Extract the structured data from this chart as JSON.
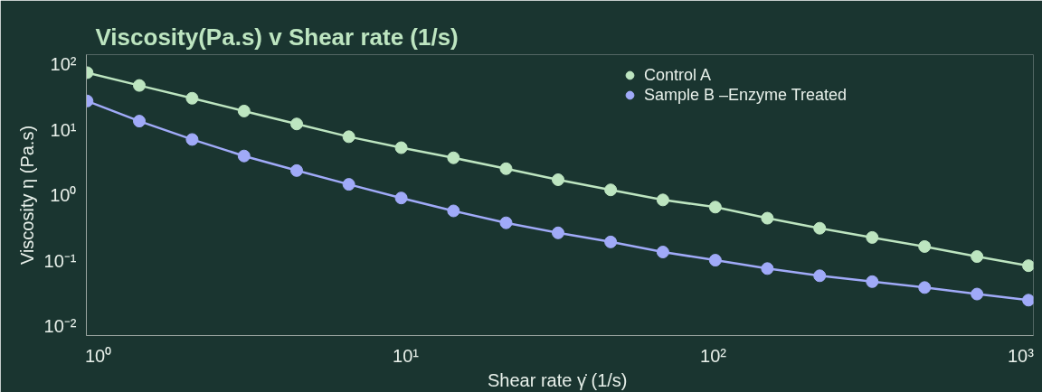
{
  "chart_data": {
    "type": "line",
    "title": "Viscosity(Pa.s) v Shear rate (1/s)",
    "xlabel": "Shear rate γ̇  (1/s)",
    "ylabel": "Viscosity η (Pa.s)",
    "log": "xy",
    "grid": false,
    "legend": "top right",
    "marker": "circle",
    "line_style": "solid",
    "x": [
      0.92,
      1.36,
      2.02,
      2.98,
      4.42,
      6.53,
      9.67,
      14.3,
      21.2,
      31.3,
      46.4,
      68.6,
      101.6,
      150,
      222,
      329,
      487,
      721,
      1060
    ],
    "xlim": [
      0.915,
      1100
    ],
    "ylim": [
      0.0072,
      141
    ],
    "xticks": [
      {
        "value": 1,
        "label": "10⁰"
      },
      {
        "value": 10,
        "label": "10¹"
      },
      {
        "value": 100,
        "label": "10²"
      },
      {
        "value": 1000,
        "label": "10³"
      }
    ],
    "yticks": [
      {
        "value": 0.01,
        "label": "10⁻²"
      },
      {
        "value": 0.1,
        "label": "10⁻¹"
      },
      {
        "value": 1,
        "label": "10⁰"
      },
      {
        "value": 10,
        "label": "10¹"
      },
      {
        "value": 100,
        "label": "10²"
      }
    ],
    "series": [
      {
        "name": "Control A",
        "color": "#bde5c0",
        "values": [
          74.8,
          47.7,
          30.4,
          19.4,
          12.3,
          7.86,
          5.34,
          3.74,
          2.55,
          1.73,
          1.21,
          0.85,
          0.66,
          0.447,
          0.314,
          0.227,
          0.165,
          0.116,
          0.084
        ]
      },
      {
        "name": "Sample B –Enzyme Treated",
        "color": "#a0aaf8",
        "values": [
          27.6,
          13.6,
          7.13,
          3.99,
          2.39,
          1.47,
          0.91,
          0.578,
          0.38,
          0.267,
          0.194,
          0.136,
          0.102,
          0.076,
          0.059,
          0.048,
          0.039,
          0.031,
          0.025
        ]
      }
    ]
  }
}
